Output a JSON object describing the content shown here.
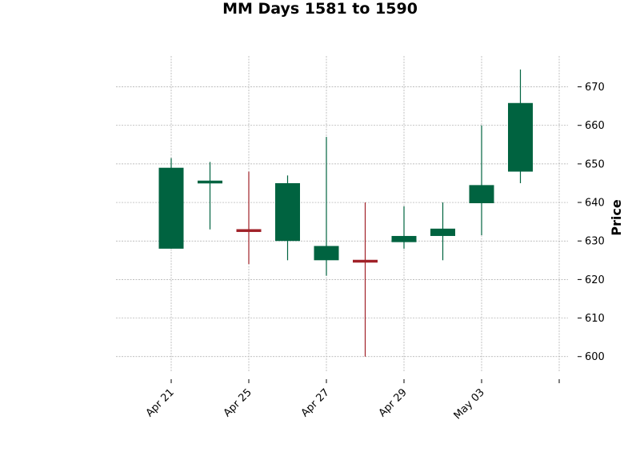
{
  "chart_data": {
    "type": "candlestick",
    "title": "MM Days 1581 to 1590",
    "ylabel": "Price",
    "xlabel": "",
    "ylim": [
      596,
      678
    ],
    "yticks": [
      600,
      610,
      620,
      630,
      640,
      650,
      660,
      670
    ],
    "grid": true,
    "colors": {
      "up": "#006340",
      "down": "#a02128"
    },
    "xtick_labels": [
      {
        "label": "Apr 21",
        "index": 0
      },
      {
        "label": "Apr 25",
        "index": 2
      },
      {
        "label": "Apr 27",
        "index": 4
      },
      {
        "label": "Apr 29",
        "index": 6
      },
      {
        "label": "May 03",
        "index": 8
      },
      {
        "label": "",
        "index": 10
      }
    ],
    "candles": [
      {
        "open": 628.0,
        "high": 651.5,
        "low": 628.0,
        "close": 649.0
      },
      {
        "open": 645.0,
        "high": 650.5,
        "low": 633.0,
        "close": 645.6
      },
      {
        "open": 633.0,
        "high": 648.0,
        "low": 624.0,
        "close": 632.4
      },
      {
        "open": 630.0,
        "high": 647.0,
        "low": 625.0,
        "close": 645.0
      },
      {
        "open": 625.0,
        "high": 657.0,
        "low": 621.0,
        "close": 628.7
      },
      {
        "open": 625.0,
        "high": 640.0,
        "low": 600.0,
        "close": 624.5
      },
      {
        "open": 629.7,
        "high": 639.0,
        "low": 628.0,
        "close": 631.3
      },
      {
        "open": 631.3,
        "high": 640.0,
        "low": 625.0,
        "close": 633.2
      },
      {
        "open": 639.8,
        "high": 660.0,
        "low": 631.5,
        "close": 644.5
      },
      {
        "open": 648.0,
        "high": 674.5,
        "low": 645.0,
        "close": 665.8
      }
    ]
  }
}
